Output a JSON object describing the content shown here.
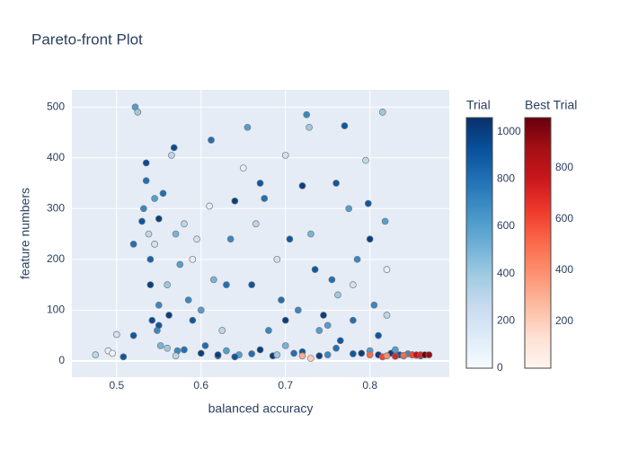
{
  "chart_data": {
    "type": "scatter",
    "title": "Pareto-front Plot",
    "x_label": "balanced accuracy",
    "y_label": "feature numbers",
    "xlim": [
      0.447,
      0.894
    ],
    "ylim": [
      -32,
      534
    ],
    "xticks": [
      0.5,
      0.6,
      0.7,
      0.8
    ],
    "yticks": [
      0,
      100,
      200,
      300,
      400,
      500
    ],
    "grid": true,
    "background": "#e5ecf6",
    "series": [
      {
        "name": "Trial",
        "x": [
          0.475,
          0.49,
          0.495,
          0.5,
          0.508,
          0.52,
          0.52,
          0.522,
          0.525,
          0.53,
          0.532,
          0.535,
          0.535,
          0.538,
          0.54,
          0.54,
          0.542,
          0.545,
          0.545,
          0.548,
          0.55,
          0.55,
          0.552,
          0.555,
          0.56,
          0.562,
          0.565,
          0.568,
          0.57,
          0.572,
          0.575,
          0.58,
          0.585,
          0.59,
          0.595,
          0.6,
          0.605,
          0.61,
          0.612,
          0.615,
          0.62,
          0.625,
          0.63,
          0.635,
          0.64,
          0.645,
          0.65,
          0.655,
          0.66,
          0.665,
          0.67,
          0.675,
          0.68,
          0.685,
          0.69,
          0.695,
          0.7,
          0.7,
          0.705,
          0.71,
          0.715,
          0.72,
          0.725,
          0.728,
          0.73,
          0.735,
          0.74,
          0.745,
          0.75,
          0.755,
          0.76,
          0.762,
          0.765,
          0.77,
          0.775,
          0.78,
          0.785,
          0.79,
          0.795,
          0.798,
          0.8,
          0.805,
          0.81,
          0.815,
          0.818,
          0.82,
          0.825,
          0.83,
          0.835,
          0.84,
          0.845,
          0.85,
          0.855,
          0.86,
          0.62,
          0.63,
          0.64,
          0.66,
          0.67,
          0.69,
          0.72,
          0.74,
          0.76,
          0.78,
          0.8,
          0.81,
          0.58,
          0.56,
          0.55,
          0.6,
          0.7,
          0.75,
          0.78,
          0.82,
          0.57,
          0.59
        ],
        "y": [
          12,
          20,
          15,
          52,
          8,
          230,
          50,
          500,
          490,
          275,
          300,
          390,
          355,
          250,
          200,
          150,
          80,
          320,
          230,
          60,
          280,
          110,
          30,
          330,
          150,
          90,
          405,
          420,
          250,
          20,
          190,
          270,
          120,
          80,
          240,
          15,
          30,
          305,
          435,
          160,
          10,
          60,
          150,
          240,
          315,
          12,
          380,
          460,
          150,
          270,
          350,
          320,
          60,
          10,
          200,
          120,
          405,
          30,
          240,
          15,
          100,
          345,
          485,
          460,
          250,
          180,
          60,
          90,
          12,
          160,
          350,
          130,
          40,
          463,
          300,
          80,
          200,
          15,
          395,
          310,
          240,
          110,
          50,
          490,
          275,
          90,
          15,
          22,
          12,
          10,
          14,
          12,
          11,
          10,
          12,
          20,
          8,
          14,
          22,
          12,
          18,
          10,
          25,
          14,
          20,
          12,
          22,
          25,
          70,
          100,
          80,
          70,
          150,
          180,
          10,
          200
        ],
        "color_values": [
          300,
          100,
          50,
          200,
          900,
          800,
          900,
          600,
          400,
          900,
          700,
          950,
          800,
          300,
          850,
          1000,
          950,
          600,
          200,
          700,
          1000,
          700,
          500,
          800,
          400,
          1000,
          300,
          950,
          500,
          700,
          600,
          300,
          700,
          900,
          200,
          1000,
          800,
          100,
          800,
          500,
          900,
          300,
          800,
          700,
          1000,
          600,
          100,
          600,
          900,
          300,
          900,
          800,
          700,
          1000,
          200,
          800,
          200,
          500,
          900,
          800,
          700,
          1000,
          700,
          400,
          500,
          900,
          600,
          1000,
          700,
          800,
          900,
          400,
          900,
          900,
          600,
          800,
          700,
          1000,
          300,
          900,
          1000,
          700,
          900,
          400,
          600,
          300,
          1000,
          600,
          900,
          800,
          700,
          1000,
          500,
          900,
          1000,
          600,
          900,
          800,
          1000,
          400,
          900,
          1000,
          800,
          900,
          600,
          1000,
          800,
          400,
          900,
          600,
          1000,
          600,
          200,
          100,
          300,
          100
        ],
        "colorbar": 0
      },
      {
        "name": "Best Trial",
        "x": [
          0.72,
          0.73,
          0.8,
          0.815,
          0.82,
          0.83,
          0.84,
          0.85,
          0.855,
          0.86,
          0.865,
          0.87
        ],
        "y": [
          10,
          5,
          12,
          8,
          10,
          9,
          11,
          12,
          12,
          12,
          12,
          12
        ],
        "color_values": [
          300,
          200,
          500,
          600,
          400,
          700,
          500,
          600,
          800,
          700,
          990,
          900
        ],
        "colorbar": 1
      }
    ],
    "colorbars": [
      {
        "title": "Trial",
        "range": [
          0,
          1060
        ],
        "ticks": [
          0,
          200,
          400,
          600,
          800,
          1000
        ],
        "colorscale": [
          [
            0,
            "#f7fbff"
          ],
          [
            0.125,
            "#deebf7"
          ],
          [
            0.25,
            "#c6dbef"
          ],
          [
            0.375,
            "#9ecae1"
          ],
          [
            0.5,
            "#6baed6"
          ],
          [
            0.625,
            "#4292c6"
          ],
          [
            0.75,
            "#2171b5"
          ],
          [
            0.875,
            "#08519c"
          ],
          [
            1,
            "#08306b"
          ]
        ]
      },
      {
        "title": "Best Trial",
        "range": [
          18,
          995
        ],
        "ticks": [
          200,
          400,
          600,
          800
        ],
        "colorscale": [
          [
            0,
            "#fff5f0"
          ],
          [
            0.125,
            "#fee0d2"
          ],
          [
            0.25,
            "#fcbba1"
          ],
          [
            0.375,
            "#fc9272"
          ],
          [
            0.5,
            "#fb6a4a"
          ],
          [
            0.625,
            "#ef3b2c"
          ],
          [
            0.75,
            "#cb181d"
          ],
          [
            0.875,
            "#a50f15"
          ],
          [
            1,
            "#67000d"
          ]
        ]
      }
    ]
  }
}
